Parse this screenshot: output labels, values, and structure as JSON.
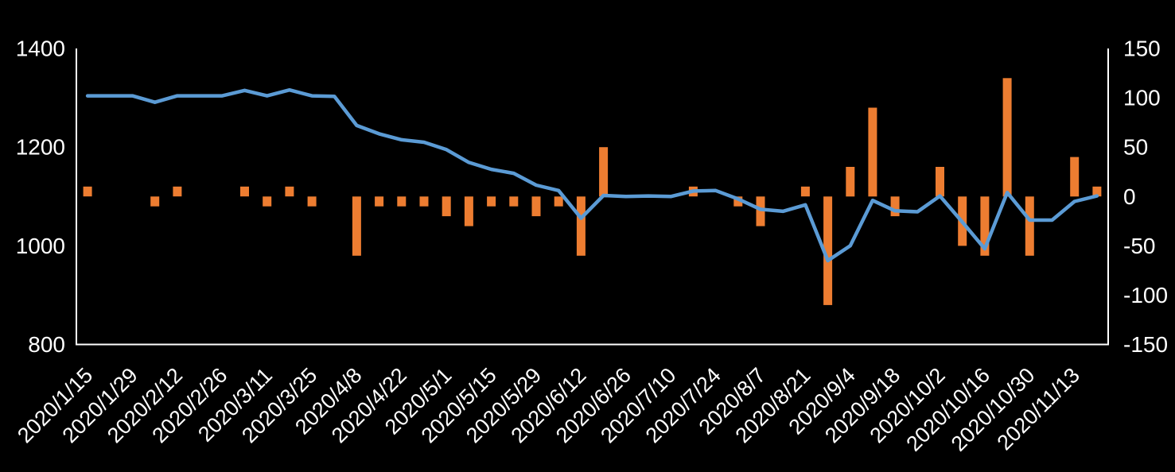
{
  "chart_data": {
    "type": "combo",
    "title": "",
    "legend": "none",
    "gridlines": false,
    "background_color": "#000000",
    "text_color": "#FFFFFF",
    "axis_line_color": "#FFFFFF",
    "categories_count": 46,
    "tick_every": 2,
    "x_tick_labels": [
      "2020/1/15",
      "2020/1/29",
      "2020/2/12",
      "2020/2/26",
      "2020/3/11",
      "2020/3/25",
      "2020/4/8",
      "2020/4/22",
      "2020/5/1",
      "2020/5/15",
      "2020/5/29",
      "2020/6/12",
      "2020/6/26",
      "2020/7/10",
      "2020/7/24",
      "2020/8/7",
      "2020/8/21",
      "2020/9/4",
      "2020/9/18",
      "2020/10/2",
      "2020/10/16",
      "2020/10/30",
      "2020/11/13"
    ],
    "left_axis": {
      "min": 800,
      "max": 1400,
      "tick_labels": [
        "1400",
        "1200",
        "1000",
        "800"
      ],
      "tick_values": [
        1400,
        1200,
        1000,
        800
      ]
    },
    "right_axis": {
      "min": -150,
      "max": 150,
      "tick_labels": [
        "150",
        "100",
        "50",
        "0",
        "-50",
        "-100",
        "-150"
      ],
      "tick_values": [
        150,
        100,
        50,
        0,
        -50,
        -100,
        -150
      ]
    },
    "series": [
      {
        "name": "line-series-left-axis",
        "type": "line",
        "axis": "left",
        "color": "#5B9BD5",
        "values": [
          1304,
          1304,
          1304,
          1291,
          1304,
          1304,
          1304,
          1315,
          1304,
          1316,
          1304,
          1303,
          1244,
          1227,
          1215,
          1210,
          1195,
          1169,
          1155,
          1147,
          1123,
          1112,
          1056,
          1102,
          1100,
          1101,
          1100,
          1111,
          1112,
          1095,
          1074,
          1070,
          1083,
          970,
          1000,
          1092,
          1071,
          1069,
          1101,
          1048,
          994,
          1108,
          1052,
          1052,
          1090,
          1101
        ]
      },
      {
        "name": "bar-series-right-axis",
        "type": "bar",
        "axis": "right",
        "color": "#ED7D31",
        "values": [
          10,
          0,
          0,
          -10,
          10,
          0,
          0,
          10,
          -10,
          10,
          -10,
          0,
          -60,
          -10,
          -10,
          -10,
          -20,
          -30,
          -10,
          -10,
          -20,
          -10,
          -60,
          50,
          0,
          0,
          0,
          10,
          0,
          -10,
          -30,
          0,
          10,
          -110,
          30,
          90,
          -20,
          0,
          30,
          -50,
          -60,
          120,
          -60,
          0,
          40,
          10
        ]
      }
    ]
  }
}
